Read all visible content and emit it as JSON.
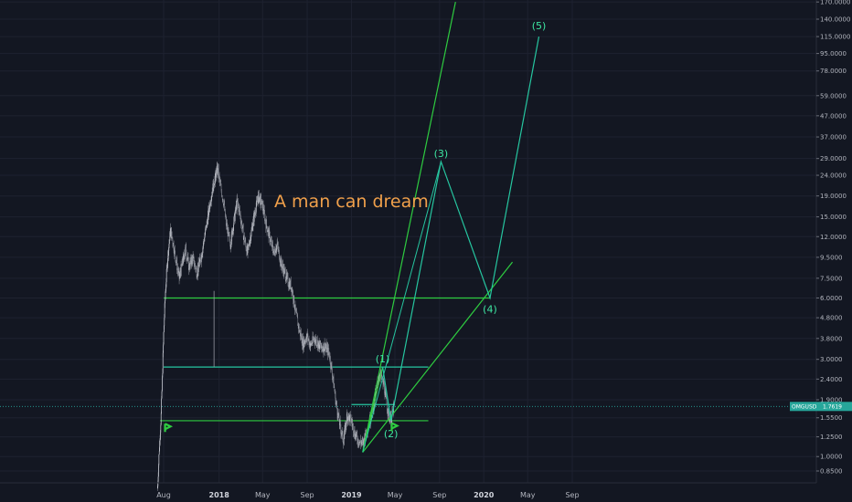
{
  "chart_data": {
    "type": "candlestick",
    "instrument_label": "OMGUSD",
    "current_price": "1.7619",
    "annotation": "A man can dream",
    "y_scale": "log",
    "y_ticks": [
      "170.0000",
      "140.0000",
      "115.0000",
      "95.0000",
      "78.0000",
      "59.0000",
      "47.0000",
      "37.0000",
      "29.0000",
      "24.0000",
      "19.0000",
      "15.0000",
      "12.0000",
      "9.5000",
      "7.5000",
      "6.0000",
      "4.8000",
      "3.8000",
      "3.0000",
      "2.4000",
      "1.9000",
      "1.5500",
      "1.2500",
      "1.0000",
      "0.8500"
    ],
    "x_ticks": [
      {
        "label": "Aug",
        "date": "2017-08-01",
        "bold": false
      },
      {
        "label": "2018",
        "date": "2018-01-01",
        "bold": true
      },
      {
        "label": "May",
        "date": "2018-05-01",
        "bold": false
      },
      {
        "label": "Sep",
        "date": "2018-09-01",
        "bold": false
      },
      {
        "label": "2019",
        "date": "2019-01-01",
        "bold": true
      },
      {
        "label": "May",
        "date": "2019-05-01",
        "bold": false
      },
      {
        "label": "Sep",
        "date": "2019-09-01",
        "bold": false
      },
      {
        "label": "2020",
        "date": "2020-01-01",
        "bold": true
      },
      {
        "label": "May",
        "date": "2020-05-01",
        "bold": false
      },
      {
        "label": "Sep",
        "date": "2020-09-01",
        "bold": false
      }
    ],
    "price_path": [
      [
        "2017-07-15",
        0.7
      ],
      [
        "2017-07-20",
        1.1
      ],
      [
        "2017-07-25",
        1.6
      ],
      [
        "2017-08-01",
        4.0
      ],
      [
        "2017-08-06",
        6.5
      ],
      [
        "2017-08-12",
        9.5
      ],
      [
        "2017-08-20",
        13.0
      ],
      [
        "2017-08-28",
        11.0
      ],
      [
        "2017-09-05",
        9.0
      ],
      [
        "2017-09-13",
        7.5
      ],
      [
        "2017-09-22",
        9.0
      ],
      [
        "2017-10-01",
        10.5
      ],
      [
        "2017-10-10",
        8.5
      ],
      [
        "2017-10-20",
        9.5
      ],
      [
        "2017-11-01",
        8.0
      ],
      [
        "2017-11-12",
        9.5
      ],
      [
        "2017-11-22",
        12.0
      ],
      [
        "2017-12-01",
        15.0
      ],
      [
        "2017-12-10",
        19.0
      ],
      [
        "2017-12-20",
        23.0
      ],
      [
        "2017-12-28",
        26.0
      ],
      [
        "2018-01-05",
        21.0
      ],
      [
        "2018-01-13",
        18.0
      ],
      [
        "2018-01-20",
        14.0
      ],
      [
        "2018-02-01",
        11.0
      ],
      [
        "2018-02-10",
        14.0
      ],
      [
        "2018-02-20",
        18.0
      ],
      [
        "2018-03-01",
        15.0
      ],
      [
        "2018-03-10",
        12.0
      ],
      [
        "2018-03-20",
        10.0
      ],
      [
        "2018-04-01",
        13.0
      ],
      [
        "2018-04-10",
        16.0
      ],
      [
        "2018-04-20",
        19.0
      ],
      [
        "2018-05-01",
        17.0
      ],
      [
        "2018-05-10",
        14.0
      ],
      [
        "2018-05-20",
        12.0
      ],
      [
        "2018-06-01",
        10.0
      ],
      [
        "2018-06-10",
        11.0
      ],
      [
        "2018-06-20",
        9.0
      ],
      [
        "2018-07-01",
        8.0
      ],
      [
        "2018-07-10",
        7.2
      ],
      [
        "2018-07-20",
        6.8
      ],
      [
        "2018-08-01",
        5.0
      ],
      [
        "2018-08-10",
        4.2
      ],
      [
        "2018-08-20",
        3.6
      ],
      [
        "2018-09-01",
        3.9
      ],
      [
        "2018-09-10",
        3.5
      ],
      [
        "2018-09-20",
        3.8
      ],
      [
        "2018-10-01",
        3.6
      ],
      [
        "2018-10-10",
        3.4
      ],
      [
        "2018-10-20",
        3.5
      ],
      [
        "2018-11-01",
        3.2
      ],
      [
        "2018-11-10",
        2.5
      ],
      [
        "2018-11-20",
        1.8
      ],
      [
        "2018-12-01",
        1.4
      ],
      [
        "2018-12-10",
        1.2
      ],
      [
        "2018-12-20",
        1.6
      ],
      [
        "2019-01-01",
        1.5
      ],
      [
        "2019-01-10",
        1.3
      ],
      [
        "2019-01-20",
        1.2
      ],
      [
        "2019-02-01",
        1.15
      ],
      [
        "2019-02-10",
        1.3
      ],
      [
        "2019-02-20",
        1.5
      ],
      [
        "2019-03-01",
        1.7
      ],
      [
        "2019-03-10",
        2.1
      ],
      [
        "2019-03-20",
        2.6
      ],
      [
        "2019-04-01",
        2.2
      ],
      [
        "2019-04-10",
        1.7
      ],
      [
        "2019-04-20",
        1.5
      ],
      [
        "2019-04-28",
        1.76
      ]
    ],
    "horizontal_lines": [
      {
        "y": 6.0,
        "from": "2017-08-01",
        "to": "2020-01-20",
        "color": "#2ecc40"
      },
      {
        "y": 2.75,
        "from": "2017-08-01",
        "to": "2019-08-01",
        "color": "#26c6a0"
      },
      {
        "y": 1.5,
        "from": "2017-07-22",
        "to": "2019-08-01",
        "color": "#2ecc40"
      },
      {
        "y": 1.8,
        "from": "2019-01-01",
        "to": "2019-05-01",
        "color": "#26c6a0"
      }
    ],
    "trend_lines": [
      {
        "from": [
          "2019-02-01",
          1.05
        ],
        "to": [
          "2019-10-15",
          170.0
        ],
        "color": "#2ecc40"
      },
      {
        "from": [
          "2019-02-01",
          1.05
        ],
        "to": [
          "2020-03-20",
          9.0
        ],
        "color": "#2ecc40"
      },
      {
        "from": [
          "2019-02-01",
          1.05
        ],
        "to": [
          "2019-03-28",
          2.75
        ],
        "color": "#2ecc40"
      }
    ],
    "wave_projection": {
      "color": "#26c6a0",
      "points": [
        [
          "2019-03-28",
          2.75
        ],
        [
          "2019-04-20",
          1.5
        ],
        [
          "2019-09-05",
          28.0
        ],
        [
          "2020-01-18",
          6.0
        ],
        [
          "2020-06-01",
          115.0
        ]
      ],
      "labels": [
        {
          "text": "(1)",
          "date": "2019-03-28",
          "price": 2.75,
          "dy": -5
        },
        {
          "text": "(2)",
          "date": "2019-04-20",
          "price": 1.5,
          "dy": 18
        },
        {
          "text": "(3)",
          "date": "2019-09-05",
          "price": 28.0,
          "dy": -5
        },
        {
          "text": "(4)",
          "date": "2020-01-18",
          "price": 6.0,
          "dy": 16
        },
        {
          "text": "(5)",
          "date": "2020-06-01",
          "price": 115.0,
          "dy": -8
        }
      ]
    },
    "grid": true,
    "colors": {
      "background": "#131722",
      "grid": "#1e2230",
      "up": "#d1d4dc",
      "down": "#d1d4dc",
      "price_tag": "#26a69a",
      "annotation": "#f0a04b"
    }
  }
}
